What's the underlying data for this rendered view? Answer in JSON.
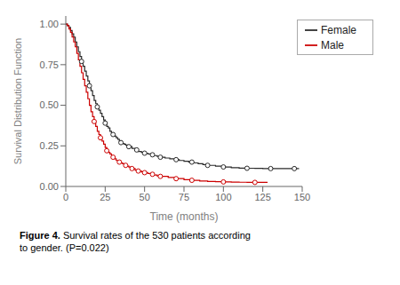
{
  "chart_data": {
    "type": "line",
    "title": "",
    "xlabel": "Time (months)",
    "ylabel": "Survival Distribution Function",
    "xlim": [
      0,
      150
    ],
    "ylim": [
      0.0,
      1.05
    ],
    "xticks": [
      0,
      25,
      50,
      75,
      100,
      125,
      150
    ],
    "yticks": [
      {
        "value": 0.0,
        "label": "0.00"
      },
      {
        "value": 0.25,
        "label": "0.25"
      },
      {
        "value": 0.5,
        "label": "0.50"
      },
      {
        "value": 0.75,
        "label": "0.75"
      },
      {
        "value": 1.0,
        "label": "1.00"
      }
    ],
    "grid": false,
    "legend": "upper right",
    "line_style": "step",
    "annotations": [
      "Figure 4.",
      "Survival rates of the 530 patients according\nto gender. (P=0.022)"
    ],
    "series": [
      {
        "name": "Female",
        "color": "#2a2a2a",
        "x": [
          0,
          1,
          2,
          3,
          4,
          5,
          6,
          7,
          8,
          9,
          10,
          11,
          12,
          13,
          14,
          15,
          16,
          17,
          18,
          19,
          20,
          21,
          22,
          23,
          24,
          25,
          26,
          27,
          28,
          29,
          30,
          31,
          32,
          33,
          34,
          35,
          36,
          37,
          38,
          39,
          40,
          42,
          44,
          46,
          48,
          50,
          52,
          54,
          56,
          58,
          60,
          63,
          66,
          69,
          72,
          75,
          78,
          81,
          84,
          87,
          90,
          95,
          100,
          105,
          110,
          115,
          120,
          125,
          130,
          135,
          140,
          145,
          148
        ],
        "values": [
          1.0,
          0.99,
          0.98,
          0.96,
          0.94,
          0.92,
          0.89,
          0.86,
          0.83,
          0.8,
          0.77,
          0.74,
          0.71,
          0.68,
          0.65,
          0.62,
          0.59,
          0.56,
          0.53,
          0.51,
          0.49,
          0.47,
          0.45,
          0.43,
          0.41,
          0.39,
          0.37,
          0.36,
          0.34,
          0.33,
          0.32,
          0.31,
          0.3,
          0.29,
          0.28,
          0.27,
          0.265,
          0.26,
          0.255,
          0.25,
          0.245,
          0.235,
          0.225,
          0.215,
          0.21,
          0.205,
          0.2,
          0.195,
          0.19,
          0.185,
          0.18,
          0.175,
          0.17,
          0.165,
          0.16,
          0.155,
          0.15,
          0.145,
          0.14,
          0.135,
          0.13,
          0.125,
          0.12,
          0.115,
          0.113,
          0.112,
          0.111,
          0.11,
          0.11,
          0.11,
          0.11,
          0.11,
          0.11
        ],
        "censor_x": [
          10,
          15,
          20,
          25,
          30,
          35,
          40,
          45,
          50,
          55,
          60,
          70,
          80,
          90,
          100,
          115,
          130,
          145
        ],
        "censor_values": [
          0.77,
          0.62,
          0.49,
          0.39,
          0.32,
          0.27,
          0.245,
          0.225,
          0.205,
          0.195,
          0.18,
          0.165,
          0.15,
          0.13,
          0.12,
          0.112,
          0.11,
          0.11
        ],
        "marker": "open_circle"
      },
      {
        "name": "Male",
        "color": "#cc0000",
        "x": [
          0,
          1,
          2,
          3,
          4,
          5,
          6,
          7,
          8,
          9,
          10,
          11,
          12,
          13,
          14,
          15,
          16,
          17,
          18,
          19,
          20,
          21,
          22,
          23,
          24,
          25,
          26,
          27,
          28,
          29,
          30,
          31,
          32,
          33,
          34,
          35,
          36,
          37,
          38,
          39,
          40,
          42,
          44,
          46,
          48,
          50,
          52,
          54,
          56,
          58,
          60,
          65,
          70,
          75,
          80,
          85,
          90,
          95,
          100,
          105,
          110,
          115,
          120,
          125,
          128
        ],
        "values": [
          1.0,
          0.99,
          0.97,
          0.95,
          0.92,
          0.89,
          0.86,
          0.82,
          0.78,
          0.74,
          0.7,
          0.66,
          0.62,
          0.58,
          0.54,
          0.5,
          0.46,
          0.43,
          0.4,
          0.37,
          0.34,
          0.32,
          0.3,
          0.28,
          0.26,
          0.24,
          0.22,
          0.21,
          0.2,
          0.19,
          0.18,
          0.17,
          0.16,
          0.155,
          0.15,
          0.145,
          0.14,
          0.135,
          0.13,
          0.125,
          0.12,
          0.11,
          0.1,
          0.095,
          0.09,
          0.085,
          0.08,
          0.075,
          0.07,
          0.065,
          0.062,
          0.055,
          0.048,
          0.042,
          0.038,
          0.034,
          0.031,
          0.029,
          0.028,
          0.027,
          0.026,
          0.025,
          0.025,
          0.025,
          0.025
        ],
        "censor_x": [
          18,
          22,
          26,
          30,
          34,
          38,
          42,
          46,
          50,
          55,
          60,
          70,
          80,
          100,
          120
        ],
        "censor_values": [
          0.4,
          0.3,
          0.22,
          0.18,
          0.15,
          0.13,
          0.11,
          0.095,
          0.085,
          0.075,
          0.062,
          0.048,
          0.038,
          0.028,
          0.025
        ],
        "marker": "open_circle"
      }
    ]
  }
}
